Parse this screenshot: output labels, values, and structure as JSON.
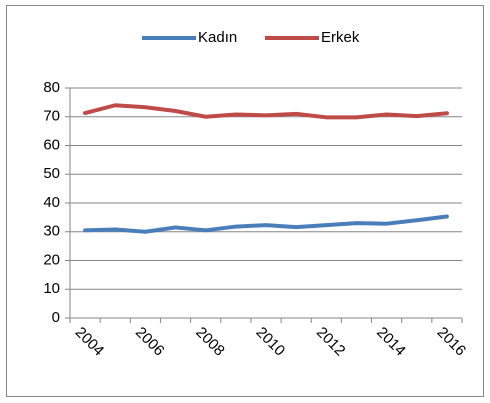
{
  "chart_data": {
    "type": "line",
    "categories": [
      "2004",
      null,
      "2006",
      null,
      "2008",
      null,
      "2010",
      null,
      "2012",
      null,
      "2014",
      null,
      "2016"
    ],
    "series": [
      {
        "name": "Kadın",
        "color": "#4a7ebb",
        "values": [
          30.5,
          30.8,
          30.0,
          31.5,
          30.5,
          31.8,
          32.3,
          31.6,
          32.3,
          33.0,
          32.8,
          34.0,
          35.3
        ]
      },
      {
        "name": "Erkek",
        "color": "#be4b48",
        "values": [
          71.3,
          74.0,
          73.3,
          72.0,
          70.0,
          70.8,
          70.5,
          71.0,
          69.8,
          69.8,
          70.8,
          70.2,
          71.2
        ]
      }
    ],
    "ylim": [
      0,
      80
    ],
    "yticks": [
      0,
      10,
      20,
      30,
      40,
      50,
      60,
      70,
      80
    ],
    "grid": true,
    "legend": "top"
  }
}
